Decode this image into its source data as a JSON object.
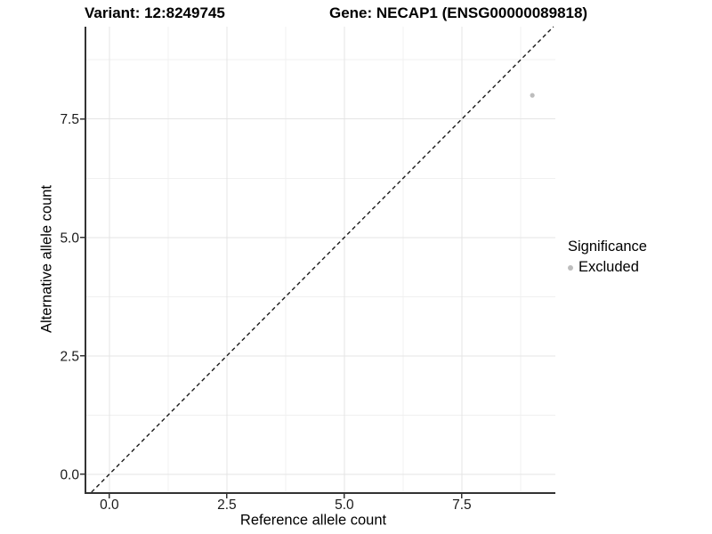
{
  "chart_data": {
    "type": "scatter",
    "titles": {
      "variant": "Variant: 12:8249745",
      "gene": "Gene: NECAP1 (ENSG00000089818)"
    },
    "xlabel": "Reference allele count",
    "ylabel": "Alternative allele count",
    "x_axis": {
      "min": -0.49,
      "max": 9.49,
      "major_ticks": [
        0,
        2.5,
        5,
        7.5
      ],
      "minor_ticks": [
        1.25,
        3.75,
        6.25,
        8.75
      ],
      "tick_labels": [
        "0.0",
        "2.5",
        "5.0",
        "7.5"
      ]
    },
    "y_axis": {
      "min": -0.38,
      "max": 9.45,
      "major_ticks": [
        0,
        2.5,
        5,
        7.5
      ],
      "minor_ticks": [
        1.25,
        3.75,
        6.25,
        8.75
      ],
      "tick_labels": [
        "0.0",
        "2.5",
        "5.0",
        "7.5"
      ]
    },
    "points": [
      {
        "x": 9,
        "y": 8,
        "series": "Excluded"
      }
    ],
    "reference_line": {
      "type": "identity",
      "style": "dashed"
    },
    "legend": {
      "title": "Significance",
      "position": "right",
      "entries": [
        {
          "label": "Excluded",
          "color": "#bdbdbd"
        }
      ]
    },
    "grid": true,
    "colors": {
      "point": "#bdbdbd",
      "axis_line": "#333333",
      "tick_mark": "#333333",
      "grid_major": "#e4e4e4",
      "grid_minor": "#f0f0f0",
      "dashed_line": "#1a1a1a",
      "text": "#000000"
    }
  }
}
